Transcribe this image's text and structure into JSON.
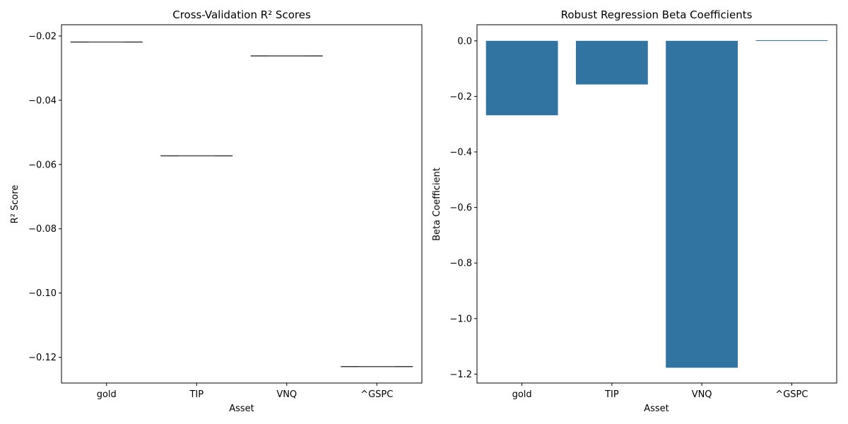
{
  "chart_data": [
    {
      "type": "box",
      "title": "Cross-Validation R² Scores",
      "xlabel": "Asset",
      "ylabel": "R² Score",
      "categories": [
        "gold",
        "TIP",
        "VNQ",
        "^GSPC"
      ],
      "values": [
        -0.0219,
        -0.0573,
        -0.0262,
        -0.1229
      ],
      "ylim": [
        -0.128,
        -0.0165
      ],
      "yticks": [
        -0.02,
        -0.04,
        -0.06,
        -0.08,
        -0.1,
        -0.12
      ],
      "ytick_labels": [
        "−0.02",
        "−0.04",
        "−0.06",
        "−0.08",
        "−0.10",
        "−0.12"
      ],
      "box_color": "#3a3a3a"
    },
    {
      "type": "bar",
      "title": "Robust Regression Beta Coefficients",
      "xlabel": "Asset",
      "ylabel": "Beta Coefficient",
      "categories": [
        "gold",
        "TIP",
        "VNQ",
        "^GSPC"
      ],
      "values": [
        -0.268,
        -0.157,
        -1.177,
        0.002
      ],
      "ylim": [
        -1.232,
        0.058
      ],
      "yticks": [
        0.0,
        -0.2,
        -0.4,
        -0.6,
        -0.8,
        -1.0,
        -1.2
      ],
      "ytick_labels": [
        "0.0",
        "−0.2",
        "−0.4",
        "−0.6",
        "−0.8",
        "−1.0",
        "−1.2"
      ],
      "bar_color": "#3274a1"
    }
  ]
}
